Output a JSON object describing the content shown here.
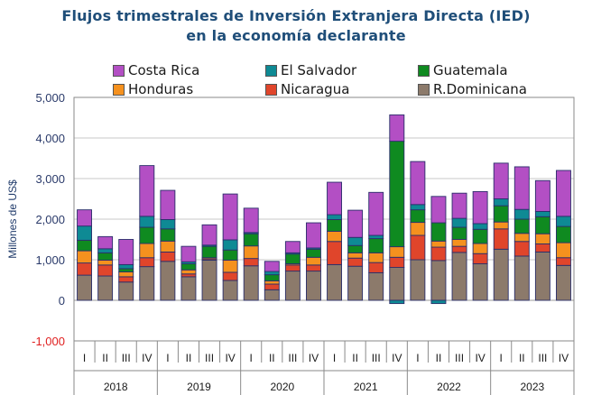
{
  "chart_data": {
    "type": "bar",
    "stacked": true,
    "title": "Flujos trimestrales de Inversión Extranjera Directa (IED)",
    "subtitle": "en la economía declarante",
    "ylabel": "Millones de US$",
    "ylim": [
      -1000,
      5000
    ],
    "yticks": [
      -1000,
      0,
      1000,
      2000,
      3000,
      4000,
      5000
    ],
    "ytick_labels": [
      "-1,000",
      "0",
      "1,000",
      "2,000",
      "3,000",
      "4,000",
      "5,000"
    ],
    "grid": true,
    "legend_position": "top",
    "quarters": [
      "I",
      "II",
      "III",
      "IV"
    ],
    "years": [
      "2018",
      "2019",
      "2020",
      "2021",
      "2022",
      "2023"
    ],
    "categories": [
      "2018-I",
      "2018-II",
      "2018-III",
      "2018-IV",
      "2019-I",
      "2019-II",
      "2019-III",
      "2019-IV",
      "2020-I",
      "2020-II",
      "2020-III",
      "2020-IV",
      "2021-I",
      "2021-II",
      "2021-III",
      "2021-IV",
      "2022-I",
      "2022-II",
      "2022-III",
      "2022-IV",
      "2023-I",
      "2023-II",
      "2023-III",
      "2023-IV"
    ],
    "series": [
      {
        "name": "R.Dominicana",
        "color": "#8c7a6b",
        "values": [
          620,
          600,
          450,
          830,
          960,
          580,
          990,
          490,
          850,
          260,
          720,
          720,
          880,
          840,
          680,
          810,
          1000,
          980,
          1180,
          900,
          1260,
          1090,
          1190,
          860
        ]
      },
      {
        "name": "Nicaragua",
        "color": "#e0452b",
        "values": [
          300,
          270,
          130,
          220,
          230,
          70,
          30,
          200,
          180,
          140,
          150,
          150,
          570,
          200,
          250,
          250,
          600,
          330,
          150,
          250,
          500,
          360,
          200,
          190
        ]
      },
      {
        "name": "Honduras",
        "color": "#f5911e",
        "values": [
          300,
          120,
          120,
          350,
          270,
          100,
          30,
          300,
          310,
          80,
          30,
          190,
          250,
          130,
          240,
          260,
          320,
          150,
          170,
          250,
          170,
          200,
          250,
          370
        ]
      },
      {
        "name": "Guatemala",
        "color": "#0f8a20",
        "values": [
          260,
          180,
          80,
          400,
          300,
          150,
          280,
          250,
          300,
          150,
          240,
          200,
          290,
          180,
          350,
          2600,
          310,
          450,
          300,
          350,
          400,
          350,
          420,
          400
        ]
      },
      {
        "name": "El Salvador",
        "color": "#0e8a94",
        "values": [
          350,
          100,
          100,
          270,
          230,
          50,
          30,
          250,
          30,
          80,
          30,
          30,
          120,
          200,
          80,
          -80,
          130,
          -80,
          220,
          140,
          170,
          240,
          130,
          250
        ]
      },
      {
        "name": "Costa Rica",
        "color": "#b34fc4",
        "values": [
          400,
          300,
          620,
          1250,
          720,
          380,
          500,
          1130,
          600,
          250,
          280,
          620,
          800,
          670,
          1060,
          650,
          1060,
          650,
          620,
          790,
          880,
          1050,
          760,
          1130
        ]
      }
    ]
  },
  "legend": [
    {
      "label": "Costa Rica",
      "color": "#b34fc4"
    },
    {
      "label": "El Salvador",
      "color": "#0e8a94"
    },
    {
      "label": "Guatemala",
      "color": "#0f8a20"
    },
    {
      "label": "Honduras",
      "color": "#f5911e"
    },
    {
      "label": "Nicaragua",
      "color": "#e0452b"
    },
    {
      "label": "R.Dominicana",
      "color": "#8c7a6b"
    }
  ]
}
